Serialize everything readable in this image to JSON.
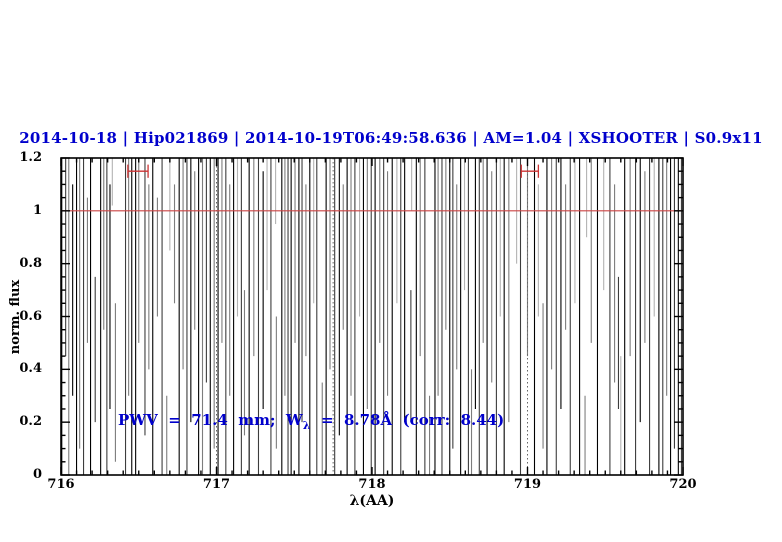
{
  "title": {
    "text": "2014-10-18 | Hip021869 | 2014-10-19T06:49:58.636 | AM=1.04 | XSHOOTER | S0.9x11"
  },
  "colors": {
    "title": "#0000cc",
    "annotation": "#0000cc",
    "continuum_line": "#cc4444",
    "interval_marker": "#cc3333",
    "axis": "#000000",
    "dotted_guide": "#666666",
    "line_shades": [
      "#000000",
      "#3d3d3d",
      "#7d7d7d",
      "#b3b3b3"
    ]
  },
  "plot": {
    "x_axis": {
      "label": "λ(AA)",
      "tick_labels": [
        "716",
        "717",
        "718",
        "719",
        "720"
      ],
      "tick_values": [
        716,
        717,
        718,
        719,
        720
      ],
      "min": 716,
      "max": 720,
      "minor_step": 0.1
    },
    "y_axis": {
      "label": "norm. flux",
      "tick_labels": [
        "0",
        "0.2",
        "0.4",
        "0.6",
        "0.8",
        "1",
        "1.2"
      ],
      "tick_values": [
        0,
        0.2,
        0.4,
        0.6,
        0.8,
        1,
        1.2
      ],
      "min": 0,
      "max": 1.2,
      "minor_step": 0.05
    },
    "annotation": {
      "prefix": "PWV  =  71.4  mm;  W",
      "sub": "λ",
      "suffix": "  =  8.78Å  (corr:  8.44)"
    }
  },
  "chart_data": {
    "type": "line",
    "title": "2014-10-18 | Hip021869 | 2014-10-19T06:49:58.636 | AM=1.04 | XSHOOTER | S0.9x11",
    "xlabel": "λ(AA)",
    "ylabel": "norm. flux",
    "xlim": [
      716,
      720
    ],
    "ylim": [
      0,
      1.2
    ],
    "grid": false,
    "legend": false,
    "continuum_level": 1.0,
    "interval_markers": [
      {
        "x1": 716.43,
        "x2": 716.56,
        "y": 1.15,
        "cap_low": 1.125,
        "cap_high": 1.175
      },
      {
        "x1": 718.96,
        "x2": 719.07,
        "y": 1.15,
        "cap_low": 1.125,
        "cap_high": 1.175
      }
    ],
    "dotted_guides": [
      717.0,
      717.75,
      719.0
    ],
    "absorption_lines_format": [
      "wavelength_AA",
      "flux_top",
      "flux_bottom",
      "shade_index"
    ],
    "absorption_lines": [
      [
        716.005,
        1.2,
        0,
        0
      ],
      [
        716.03,
        1.2,
        0.45,
        1
      ],
      [
        716.05,
        1.2,
        0,
        2
      ],
      [
        716.075,
        1.1,
        0.3,
        0
      ],
      [
        716.1,
        1.2,
        0,
        0
      ],
      [
        716.12,
        1.2,
        0.1,
        2
      ],
      [
        716.145,
        1.2,
        0,
        1
      ],
      [
        716.17,
        1.05,
        0.5,
        2
      ],
      [
        716.19,
        1.2,
        0,
        0
      ],
      [
        716.22,
        0.75,
        0.2,
        1
      ],
      [
        716.255,
        1.2,
        0,
        0
      ],
      [
        716.275,
        1.2,
        0.55,
        2
      ],
      [
        716.295,
        1.2,
        0,
        1
      ],
      [
        716.315,
        1.1,
        0.25,
        0
      ],
      [
        716.33,
        1.2,
        1.02,
        3
      ],
      [
        716.35,
        0.65,
        0.05,
        2
      ],
      [
        716.415,
        1.2,
        0,
        1
      ],
      [
        716.435,
        1.2,
        0.3,
        2
      ],
      [
        716.455,
        1.2,
        0,
        0
      ],
      [
        716.48,
        1.2,
        0,
        0
      ],
      [
        716.5,
        1.2,
        0.5,
        2
      ],
      [
        716.54,
        1.2,
        0.15,
        1
      ],
      [
        716.565,
        1.1,
        0.4,
        2
      ],
      [
        716.59,
        1.2,
        0,
        0
      ],
      [
        716.62,
        1.05,
        0.6,
        2
      ],
      [
        716.65,
        1.2,
        0,
        1
      ],
      [
        716.68,
        0.3,
        0,
        2
      ],
      [
        716.7,
        1.2,
        0.85,
        3
      ],
      [
        716.73,
        1.1,
        0.65,
        2
      ],
      [
        716.76,
        1.2,
        0,
        0
      ],
      [
        716.785,
        1.2,
        0.4,
        2
      ],
      [
        716.81,
        1.2,
        0,
        1
      ],
      [
        716.835,
        1.2,
        0.2,
        0
      ],
      [
        716.86,
        1.15,
        0.55,
        2
      ],
      [
        716.885,
        1.2,
        0,
        0
      ],
      [
        716.91,
        1.2,
        0,
        2
      ],
      [
        716.935,
        1.2,
        0.35,
        1
      ],
      [
        716.96,
        1.2,
        0,
        0
      ],
      [
        716.985,
        1.2,
        0.1,
        2
      ],
      [
        717.01,
        1.2,
        0,
        0
      ],
      [
        717.035,
        1.2,
        0.5,
        2
      ],
      [
        717.06,
        1.2,
        0,
        1
      ],
      [
        717.085,
        1.1,
        0.3,
        2
      ],
      [
        717.11,
        1.2,
        0,
        0
      ],
      [
        717.135,
        1.2,
        0.6,
        3
      ],
      [
        717.16,
        1.2,
        0,
        1
      ],
      [
        717.18,
        0.7,
        0.15,
        2
      ],
      [
        717.21,
        1.2,
        0,
        0
      ],
      [
        717.24,
        1.2,
        0.45,
        2
      ],
      [
        717.27,
        1.2,
        0,
        1
      ],
      [
        717.3,
        1.15,
        0.25,
        0
      ],
      [
        717.325,
        1.2,
        0.7,
        3
      ],
      [
        717.35,
        1.2,
        0,
        1
      ],
      [
        717.38,
        1.2,
        0.95,
        3
      ],
      [
        717.385,
        0.6,
        0.1,
        2
      ],
      [
        717.42,
        1.2,
        0,
        0
      ],
      [
        717.44,
        1.2,
        0.3,
        2
      ],
      [
        717.46,
        1.2,
        0,
        1
      ],
      [
        717.48,
        1.2,
        0,
        0
      ],
      [
        717.505,
        1.2,
        0.5,
        2
      ],
      [
        717.53,
        1.2,
        0,
        0
      ],
      [
        717.55,
        1.2,
        0.2,
        1
      ],
      [
        717.575,
        1.1,
        0.45,
        2
      ],
      [
        717.6,
        1.2,
        0,
        0
      ],
      [
        717.625,
        1.2,
        0.65,
        3
      ],
      [
        717.645,
        1.2,
        0,
        1
      ],
      [
        717.68,
        0.35,
        0,
        2
      ],
      [
        717.705,
        1.2,
        0,
        0
      ],
      [
        717.73,
        1.2,
        0.4,
        2
      ],
      [
        717.76,
        1.2,
        0,
        1
      ],
      [
        717.79,
        1.2,
        0.15,
        0
      ],
      [
        717.815,
        1.1,
        0.55,
        2
      ],
      [
        717.84,
        1.2,
        0,
        0
      ],
      [
        717.865,
        1.2,
        0.3,
        2
      ],
      [
        717.89,
        1.2,
        0,
        1
      ],
      [
        717.92,
        1.2,
        0.6,
        3
      ],
      [
        717.945,
        1.2,
        0,
        0
      ],
      [
        717.97,
        1.2,
        0.25,
        2
      ],
      [
        717.995,
        1.2,
        0,
        1
      ],
      [
        718.02,
        1.2,
        0,
        0
      ],
      [
        718.05,
        1.2,
        0.5,
        2
      ],
      [
        718.075,
        1.2,
        0,
        1
      ],
      [
        718.1,
        1.15,
        0.3,
        2
      ],
      [
        718.13,
        1.2,
        0,
        0
      ],
      [
        718.16,
        1.2,
        0.65,
        3
      ],
      [
        718.185,
        1.2,
        0,
        1
      ],
      [
        718.21,
        1.2,
        0.2,
        0
      ],
      [
        718.25,
        0.7,
        0.2,
        1
      ],
      [
        718.255,
        1.2,
        1.0,
        3
      ],
      [
        718.285,
        1.2,
        0,
        0
      ],
      [
        718.31,
        1.2,
        0.45,
        2
      ],
      [
        718.34,
        1.2,
        0,
        1
      ],
      [
        718.37,
        0.3,
        0,
        2
      ],
      [
        718.405,
        1.2,
        0,
        0
      ],
      [
        718.425,
        1.2,
        0.3,
        2
      ],
      [
        718.45,
        1.2,
        0,
        1
      ],
      [
        718.475,
        1.2,
        0.55,
        2
      ],
      [
        718.5,
        1.2,
        0,
        0
      ],
      [
        718.52,
        1.2,
        0.1,
        1
      ],
      [
        718.545,
        1.1,
        0.4,
        2
      ],
      [
        718.57,
        1.2,
        0,
        0
      ],
      [
        718.595,
        1.2,
        0.7,
        3
      ],
      [
        718.62,
        1.2,
        0,
        1
      ],
      [
        718.64,
        0.4,
        0,
        2
      ],
      [
        718.665,
        1.2,
        0.25,
        0
      ],
      [
        718.69,
        1.2,
        0,
        1
      ],
      [
        718.715,
        1.2,
        0.5,
        2
      ],
      [
        718.74,
        1.2,
        0,
        0
      ],
      [
        718.77,
        1.15,
        0.35,
        2
      ],
      [
        718.8,
        1.2,
        0,
        1
      ],
      [
        718.825,
        1.2,
        0.6,
        3
      ],
      [
        718.85,
        1.2,
        0,
        0
      ],
      [
        718.88,
        1.2,
        0.2,
        2
      ],
      [
        718.93,
        1.2,
        0.8,
        3
      ],
      [
        718.955,
        1.2,
        0,
        1
      ],
      [
        719.0,
        1.2,
        0.45,
        2
      ],
      [
        719.045,
        1.2,
        0,
        0
      ],
      [
        719.07,
        1.1,
        0.6,
        3
      ],
      [
        719.1,
        0.65,
        0.1,
        2
      ],
      [
        719.125,
        1.2,
        0,
        0
      ],
      [
        719.155,
        1.2,
        0.4,
        2
      ],
      [
        719.185,
        1.2,
        0,
        1
      ],
      [
        719.215,
        1.2,
        0.25,
        0
      ],
      [
        719.245,
        1.1,
        0.55,
        2
      ],
      [
        719.275,
        1.2,
        0,
        1
      ],
      [
        719.305,
        1.2,
        0.65,
        3
      ],
      [
        719.335,
        1.2,
        0,
        0
      ],
      [
        719.37,
        0.3,
        0,
        2
      ],
      [
        719.38,
        1.2,
        0.9,
        3
      ],
      [
        719.41,
        1.2,
        0.5,
        2
      ],
      [
        719.45,
        1.2,
        0,
        0
      ],
      [
        719.49,
        1.2,
        0.7,
        3
      ],
      [
        719.53,
        1.2,
        0,
        1
      ],
      [
        719.56,
        1.1,
        0.35,
        2
      ],
      [
        719.585,
        0.75,
        0.25,
        1
      ],
      [
        719.6,
        0.45,
        0,
        3
      ],
      [
        719.625,
        1.2,
        0,
        0
      ],
      [
        719.66,
        1.2,
        0.45,
        2
      ],
      [
        719.695,
        1.2,
        0,
        1
      ],
      [
        719.725,
        1.2,
        0.2,
        0
      ],
      [
        719.755,
        1.15,
        0.5,
        2
      ],
      [
        719.785,
        1.2,
        0,
        1
      ],
      [
        719.815,
        1.2,
        0.6,
        3
      ],
      [
        719.845,
        1.2,
        0,
        0
      ],
      [
        719.87,
        1.2,
        0,
        1
      ],
      [
        719.895,
        1.2,
        0.3,
        2
      ],
      [
        719.92,
        1.2,
        0,
        0
      ],
      [
        719.945,
        1.2,
        0.1,
        1
      ],
      [
        719.97,
        1.2,
        0,
        0
      ],
      [
        719.99,
        1.2,
        0,
        1
      ]
    ],
    "annotation_text": "PWV  =  71.4  mm;  Wλ  =  8.78Å  (corr:  8.44)"
  }
}
